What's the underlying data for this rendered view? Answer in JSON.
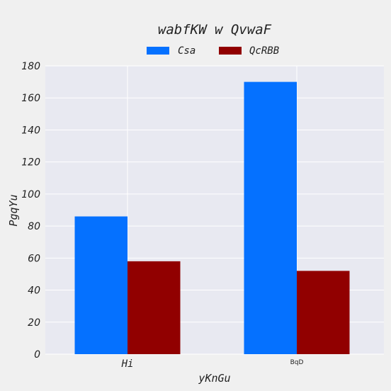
{
  "chart_data": {
    "type": "bar",
    "title": "wabfKW w QvwaF",
    "xlabel": "yKnGu",
    "ylabel": "PgqYu",
    "categories": [
      "Hi",
      "BqD"
    ],
    "series": [
      {
        "name": "Csa",
        "values": [
          86,
          170
        ],
        "color": "#0571ff"
      },
      {
        "name": "QcRBB",
        "values": [
          58,
          52
        ],
        "color": "#910000"
      }
    ],
    "ylim": [
      0,
      180
    ],
    "yticks": [
      0,
      20,
      40,
      60,
      80,
      100,
      120,
      140,
      160,
      180
    ],
    "grid": true,
    "legend_position": "top-center",
    "plot_background": "#e8e9f1"
  }
}
